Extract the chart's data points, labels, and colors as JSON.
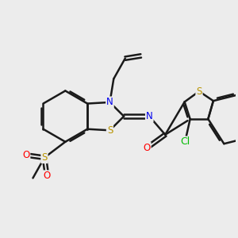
{
  "background_color": "#ececec",
  "bond_color": "#1a1a1a",
  "bond_width": 1.8,
  "atom_colors": {
    "S": "#b89400",
    "N": "#0000ee",
    "O": "#ff0000",
    "Cl": "#00bb00",
    "C": "#1a1a1a"
  },
  "font_size_atom": 8.5
}
